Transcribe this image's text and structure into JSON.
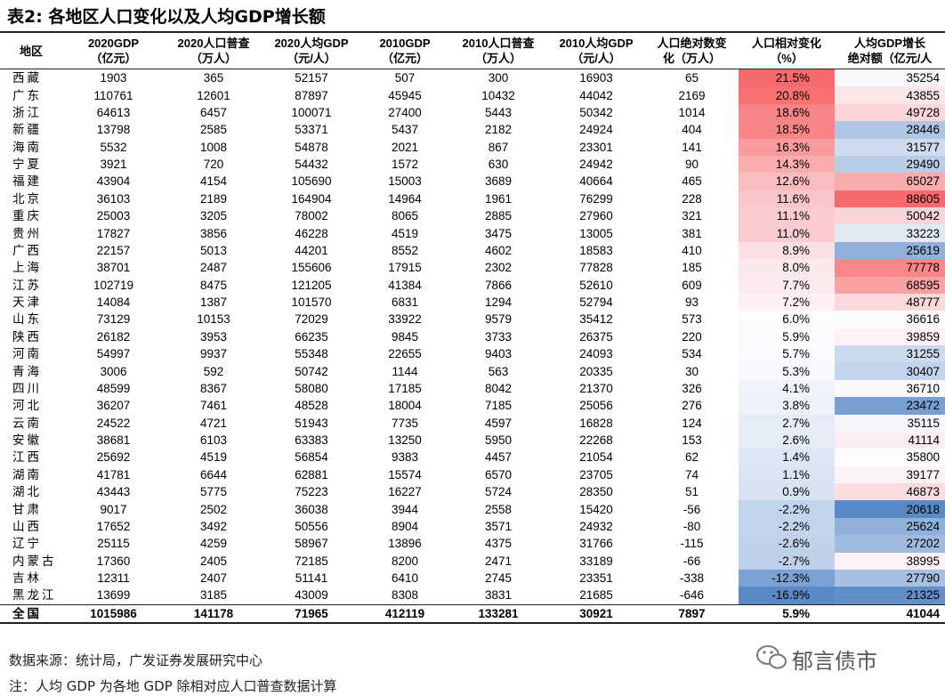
{
  "title": "表2: 各地区人口变化以及人均GDP增长额",
  "color_scale": {
    "low": "#5a8ac6",
    "mid": "#fcfcff",
    "high": "#f8696b",
    "columns": [
      8,
      9
    ]
  },
  "table": {
    "header": [
      [
        "地区"
      ],
      [
        "2020GDP",
        "（亿元）"
      ],
      [
        "2020人口普查",
        "（万人）"
      ],
      [
        "2020人均GDP",
        "（元/人）"
      ],
      [
        "2010GDP",
        "（亿元）"
      ],
      [
        "2010人口普查",
        "（万人）"
      ],
      [
        "2010人均GDP",
        "（元/人）"
      ],
      [
        "人口绝对数变",
        "化（万人）"
      ],
      [
        "人口相对变化",
        "（%）"
      ],
      [
        "人均GDP增长",
        "绝对额（亿元/人"
      ]
    ],
    "rows": [
      [
        "西藏",
        "1903",
        "365",
        "52157",
        "507",
        "300",
        "16903",
        "65",
        "21.5%",
        "35254"
      ],
      [
        "广东",
        "110761",
        "12601",
        "87897",
        "45945",
        "10432",
        "44042",
        "2169",
        "20.8%",
        "43855"
      ],
      [
        "浙江",
        "64613",
        "6457",
        "100071",
        "27400",
        "5443",
        "50342",
        "1014",
        "18.6%",
        "49728"
      ],
      [
        "新疆",
        "13798",
        "2585",
        "53371",
        "5437",
        "2182",
        "24924",
        "404",
        "18.5%",
        "28446"
      ],
      [
        "海南",
        "5532",
        "1008",
        "54878",
        "2021",
        "867",
        "23301",
        "141",
        "16.3%",
        "31577"
      ],
      [
        "宁夏",
        "3921",
        "720",
        "54432",
        "1572",
        "630",
        "24942",
        "90",
        "14.3%",
        "29490"
      ],
      [
        "福建",
        "43904",
        "4154",
        "105690",
        "15003",
        "3689",
        "40664",
        "465",
        "12.6%",
        "65027"
      ],
      [
        "北京",
        "36103",
        "2189",
        "164904",
        "14964",
        "1961",
        "76299",
        "228",
        "11.6%",
        "88605"
      ],
      [
        "重庆",
        "25003",
        "3205",
        "78002",
        "8065",
        "2885",
        "27960",
        "321",
        "11.1%",
        "50042"
      ],
      [
        "贵州",
        "17827",
        "3856",
        "46228",
        "4519",
        "3475",
        "13005",
        "381",
        "11.0%",
        "33223"
      ],
      [
        "广西",
        "22157",
        "5013",
        "44201",
        "8552",
        "4602",
        "18583",
        "410",
        "8.9%",
        "25619"
      ],
      [
        "上海",
        "38701",
        "2487",
        "155606",
        "17915",
        "2302",
        "77828",
        "185",
        "8.0%",
        "77778"
      ],
      [
        "江苏",
        "102719",
        "8475",
        "121205",
        "41384",
        "7866",
        "52610",
        "609",
        "7.7%",
        "68595"
      ],
      [
        "天津",
        "14084",
        "1387",
        "101570",
        "6831",
        "1294",
        "52794",
        "93",
        "7.2%",
        "48777"
      ],
      [
        "山东",
        "73129",
        "10153",
        "72029",
        "33922",
        "9579",
        "35412",
        "573",
        "6.0%",
        "36616"
      ],
      [
        "陕西",
        "26182",
        "3953",
        "66235",
        "9845",
        "3733",
        "26375",
        "220",
        "5.9%",
        "39859"
      ],
      [
        "河南",
        "54997",
        "9937",
        "55348",
        "22655",
        "9403",
        "24093",
        "534",
        "5.7%",
        "31255"
      ],
      [
        "青海",
        "3006",
        "592",
        "50742",
        "1144",
        "563",
        "20335",
        "30",
        "5.3%",
        "30407"
      ],
      [
        "四川",
        "48599",
        "8367",
        "58080",
        "17185",
        "8042",
        "21370",
        "326",
        "4.1%",
        "36710"
      ],
      [
        "河北",
        "36207",
        "7461",
        "48528",
        "18004",
        "7185",
        "25056",
        "276",
        "3.8%",
        "23472"
      ],
      [
        "云南",
        "24522",
        "4721",
        "51943",
        "7735",
        "4597",
        "16828",
        "124",
        "2.7%",
        "35115"
      ],
      [
        "安徽",
        "38681",
        "6103",
        "63383",
        "13250",
        "5950",
        "22268",
        "153",
        "2.6%",
        "41114"
      ],
      [
        "江西",
        "25692",
        "4519",
        "56854",
        "9383",
        "4457",
        "21054",
        "62",
        "1.4%",
        "35800"
      ],
      [
        "湖南",
        "41781",
        "6644",
        "62881",
        "15574",
        "6570",
        "23705",
        "74",
        "1.1%",
        "39177"
      ],
      [
        "湖北",
        "43443",
        "5775",
        "75223",
        "16227",
        "5724",
        "28350",
        "51",
        "0.9%",
        "46873"
      ],
      [
        "甘肃",
        "9017",
        "2502",
        "36038",
        "3944",
        "2558",
        "15420",
        "-56",
        "-2.2%",
        "20618"
      ],
      [
        "山西",
        "17652",
        "3492",
        "50556",
        "8904",
        "3571",
        "24932",
        "-80",
        "-2.2%",
        "25624"
      ],
      [
        "辽宁",
        "25115",
        "4259",
        "58967",
        "13896",
        "4375",
        "31766",
        "-115",
        "-2.6%",
        "27202"
      ],
      [
        "内蒙古",
        "17360",
        "2405",
        "72185",
        "8200",
        "2471",
        "33189",
        "-66",
        "-2.7%",
        "38995"
      ],
      [
        "吉林",
        "12311",
        "2407",
        "51141",
        "6410",
        "2745",
        "23351",
        "-338",
        "-12.3%",
        "27790"
      ],
      [
        "黑龙江",
        "13699",
        "3185",
        "43009",
        "8308",
        "3831",
        "21685",
        "-646",
        "-16.9%",
        "21325"
      ]
    ],
    "total": [
      "全国",
      "1015986",
      "141178",
      "71965",
      "412119",
      "133281",
      "30921",
      "7897",
      "5.9%",
      "41044"
    ]
  },
  "notes": {
    "source": "数据来源：统计局，广发证券发展研究中心",
    "note": "注：人均 GDP 为各地 GDP 除相对应人口普查数据计算"
  },
  "watermark": "郁言债市"
}
